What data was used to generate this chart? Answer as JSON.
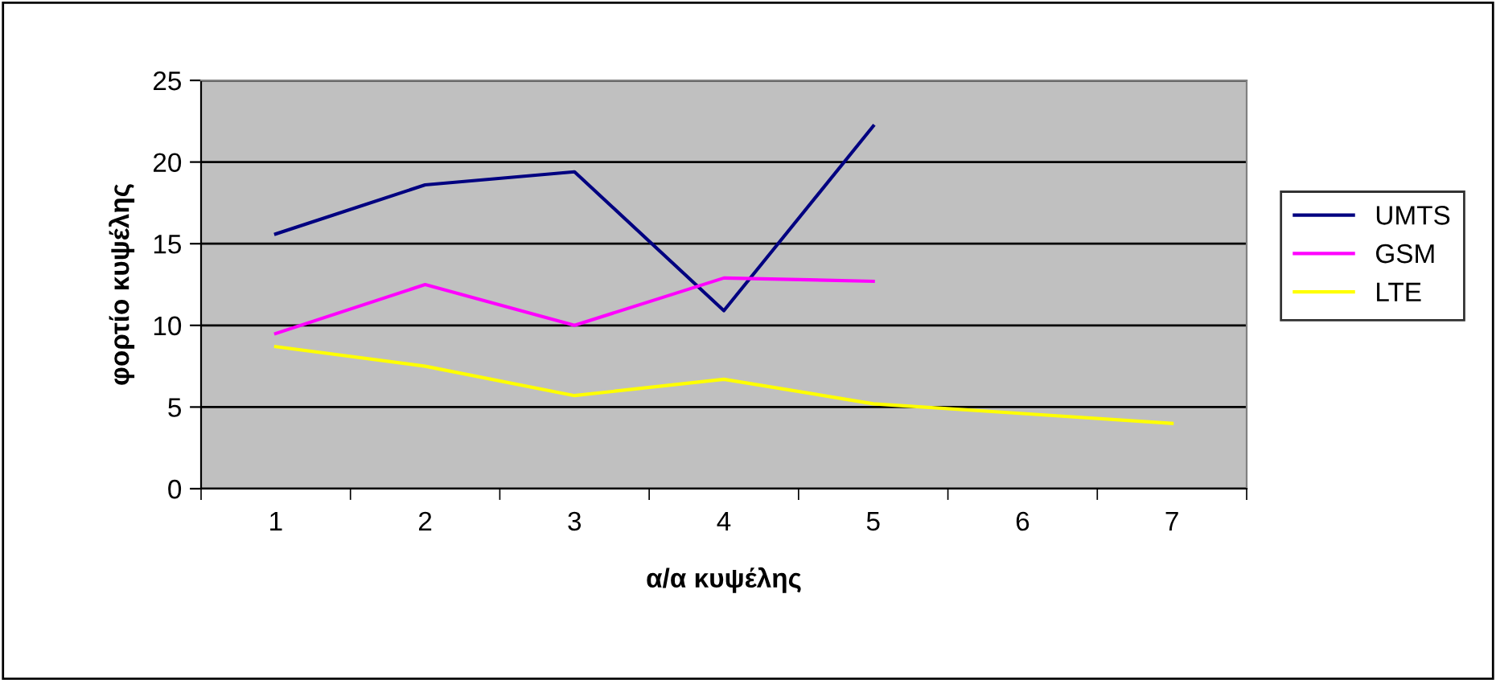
{
  "chart_data": {
    "type": "line",
    "xlabel": "α/α κυψέλης",
    "ylabel": "φορτίο κυψέλης",
    "categories": [
      "1",
      "2",
      "3",
      "4",
      "5",
      "6",
      "7"
    ],
    "series": [
      {
        "name": "UMTS",
        "color": "#000080",
        "values": [
          15.6,
          18.6,
          19.4,
          10.9,
          22.2,
          null,
          null
        ]
      },
      {
        "name": "GSM",
        "color": "#ff00ff",
        "values": [
          9.5,
          12.5,
          10.0,
          12.9,
          12.7,
          null,
          null
        ]
      },
      {
        "name": "LTE",
        "color": "#ffff00",
        "values": [
          8.7,
          7.5,
          5.7,
          6.7,
          5.2,
          4.6,
          4.0
        ]
      }
    ],
    "ylim": [
      0,
      25
    ],
    "yticks": [
      0,
      5,
      10,
      15,
      20,
      25
    ],
    "grid": "y",
    "legend": "right",
    "marker": "none",
    "line_style": "solid"
  }
}
